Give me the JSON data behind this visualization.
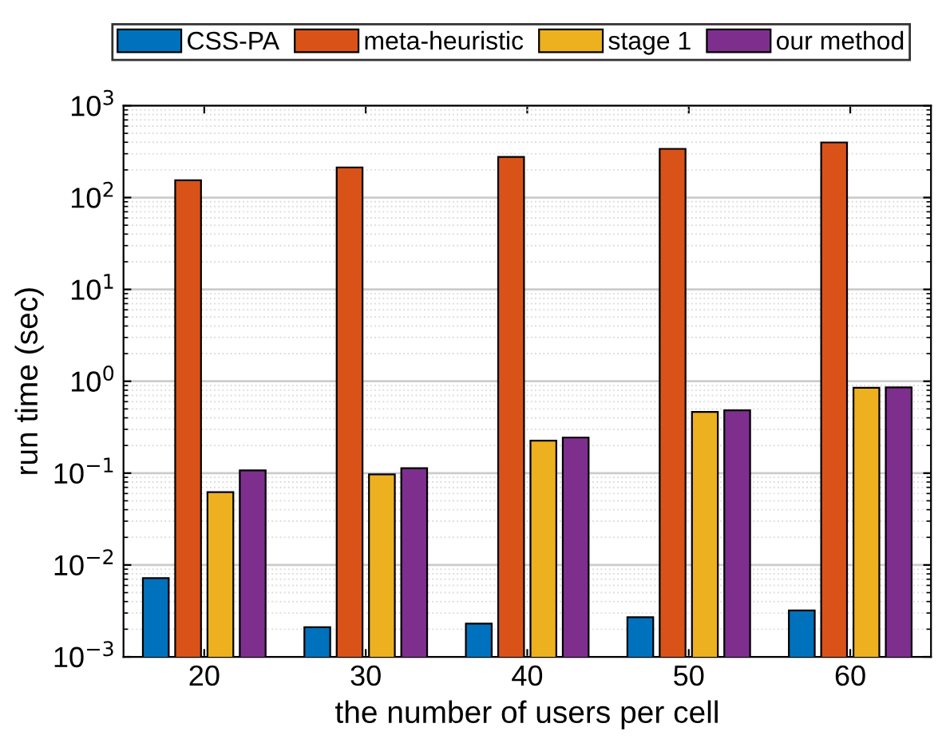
{
  "chart_data": {
    "type": "bar",
    "xlabel": "the number of users per cell",
    "ylabel": "run time (sec)",
    "categories": [
      "20",
      "30",
      "40",
      "50",
      "60"
    ],
    "series": [
      {
        "name": "CSS-PA",
        "color": "#0072bd",
        "values": [
          0.0072,
          0.0021,
          0.0023,
          0.0027,
          0.0032
        ]
      },
      {
        "name": "meta-heuristic",
        "color": "#d95319",
        "values": [
          154,
          213,
          277,
          339,
          398
        ]
      },
      {
        "name": "stage 1",
        "color": "#edb120",
        "values": [
          0.062,
          0.097,
          0.226,
          0.464,
          0.85
        ]
      },
      {
        "name": "our method",
        "color": "#7e2f8e",
        "values": [
          0.107,
          0.113,
          0.244,
          0.483,
          0.86
        ]
      }
    ],
    "log": "y",
    "ylim": [
      0.001,
      1000
    ],
    "yticks": [
      {
        "value": 0.001,
        "label": "10$^{−3}$"
      },
      {
        "value": 0.01,
        "label": "10$^{−2}$"
      },
      {
        "value": 0.1,
        "label": "10$^{−1}$"
      },
      {
        "value": 1,
        "label": "10$^{0}$"
      },
      {
        "value": 10,
        "label": "10$^{1}$"
      },
      {
        "value": 100,
        "label": "10$^{2}$"
      },
      {
        "value": 1000,
        "label": "10$^{3}$"
      }
    ],
    "grid": true,
    "legend": "top"
  }
}
